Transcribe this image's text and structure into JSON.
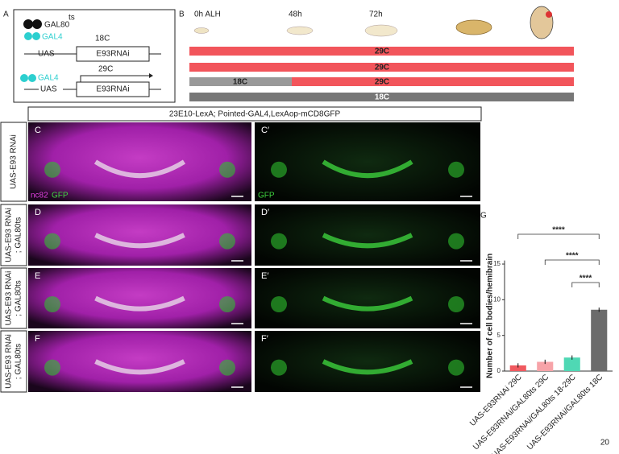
{
  "panels": {
    "a": {
      "label": "A",
      "gal80": "GAL80",
      "ts": "ts",
      "gal4_top": "GAL4",
      "temp_top": "18C",
      "uas_top": "UAS",
      "gene_top": "E93RNAi",
      "gal4_bottom": "GAL4",
      "temp_bottom": "29C",
      "uas_bottom": "UAS",
      "gene_bottom": "E93RNAi"
    },
    "b": {
      "label": "B",
      "times": [
        "0h ALH",
        "48h",
        "72h"
      ],
      "rows": [
        [
          "29C"
        ],
        [
          "29C"
        ],
        [
          "18C",
          "29C"
        ],
        [
          "18C"
        ]
      ]
    },
    "images": {
      "header": "23E10-LexA; Pointed-GAL4,LexAop-mCD8GFP",
      "rows": [
        {
          "label": [
            "UAS-E93 RNAi"
          ],
          "letters": [
            "C",
            "C′"
          ]
        },
        {
          "label": [
            "UAS-E93 RNAi",
            "; GAL80ts"
          ],
          "letters": [
            "D",
            "D′"
          ]
        },
        {
          "label": [
            "UAS-E93 RNAi",
            "; GAL80ts"
          ],
          "letters": [
            "E",
            "E′"
          ]
        },
        {
          "label": [
            "UAS-E93 RNAi",
            "; GAL80ts"
          ],
          "letters": [
            "F",
            "F′"
          ]
        }
      ],
      "stain_nc82": "nc82",
      "stain_gfp": "GFP",
      "stain_gfp_right": "GFP"
    },
    "g": {
      "label": "G"
    }
  },
  "chart_data": {
    "type": "bar",
    "ylabel": "Number of cell bodies/hemibrain",
    "categories": [
      "UAS-E93RNAi 29C",
      "UAS-E93RNAi/GAL80ts 29C",
      "UAS-E93RNAi/GAL80ts 18-29C",
      "UAS-E93RNAi/GAL80ts 18C"
    ],
    "values": [
      0.8,
      1.3,
      1.9,
      8.6
    ],
    "errors": [
      0.3,
      0.3,
      0.3,
      0.3
    ],
    "colors": [
      "#f0595f",
      "#f7a3a8",
      "#4fd8b4",
      "#6b6b6b"
    ],
    "ylim": [
      0,
      15.5
    ],
    "yticks": [
      0,
      5,
      10,
      15
    ],
    "annotations": [
      {
        "pair": [
          0,
          3
        ],
        "label": "****"
      },
      {
        "pair": [
          1,
          3
        ],
        "label": "****"
      },
      {
        "pair": [
          2,
          3
        ],
        "label": "****"
      }
    ]
  },
  "page_number": "20"
}
